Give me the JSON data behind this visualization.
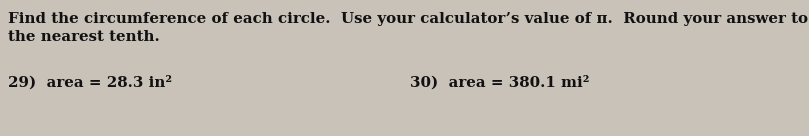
{
  "background_color": "#c8c2b8",
  "line1": "Find the circumference of each circle.  Use your calculator’s value of π.  Round your answer to",
  "line2": "the nearest tenth.",
  "item29": "29)  area = 28.3 in²",
  "item30": "30)  area = 380.1 mi²",
  "text_color": "#111111",
  "font_size_main": 10.8,
  "fig_width": 8.09,
  "fig_height": 1.36,
  "dpi": 100
}
